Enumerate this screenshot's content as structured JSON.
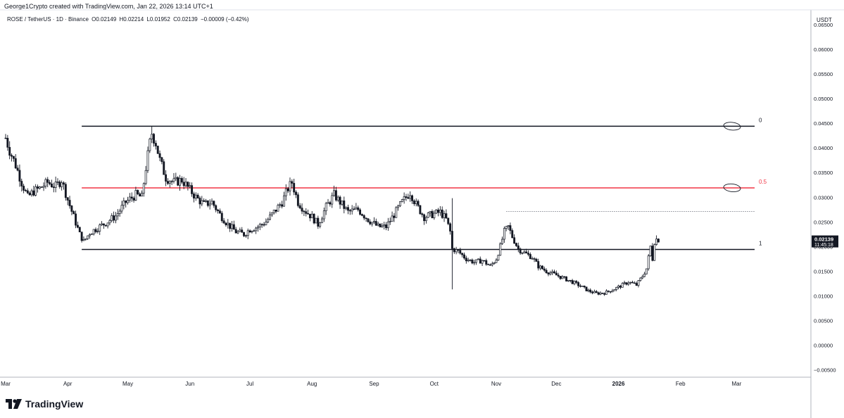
{
  "header": {
    "attribution": "George1Crypto created with TradingView.com, Jan 22, 2026 13:14 UTC+1"
  },
  "symbol": {
    "name": "ROSE / TetherUS · 1D · Binance",
    "open": "O0.02149",
    "high": "H0.02214",
    "low": "L0.01952",
    "close": "C0.02139",
    "change": "−0.00009 (−0.42%)"
  },
  "price_axis": {
    "currency": "USDT",
    "last_price": "0.02139",
    "countdown": "11:45:18"
  },
  "footer": {
    "brand": "TradingView",
    "logo_icon": "tradingview-logo-icon"
  },
  "colors": {
    "candle": "#131722",
    "fib_mid": "#f23645",
    "axis": "#131722"
  },
  "chart_data": {
    "type": "candlestick",
    "x_tick_labels": [
      "Mar",
      "Apr",
      "May",
      "Jun",
      "Jul",
      "Aug",
      "Sep",
      "Oct",
      "Nov",
      "Dec",
      "2026",
      "Feb",
      "Mar"
    ],
    "y_tick_labels": [
      "0.06500",
      "0.06000",
      "0.05500",
      "0.05000",
      "0.04500",
      "0.04000",
      "0.03500",
      "0.03000",
      "0.02500",
      "0.02000",
      "0.01500",
      "0.01000",
      "0.00500",
      "0.00000",
      "−0.00500"
    ],
    "y_ticks": [
      0.065,
      0.06,
      0.055,
      0.05,
      0.045,
      0.04,
      0.035,
      0.03,
      0.025,
      0.02,
      0.015,
      0.01,
      0.005,
      0.0,
      -0.005
    ],
    "ylim": [
      -0.0065,
      0.068
    ],
    "fib_levels": [
      {
        "label": "0",
        "value": 0.0444
      },
      {
        "label": "0.5",
        "value": 0.0319
      },
      {
        "label": "1",
        "value": 0.0194
      }
    ],
    "dotted_level": 0.0271,
    "close_path": [
      [
        "2025-03-01",
        0.042
      ],
      [
        "2025-03-03",
        0.0395
      ],
      [
        "2025-03-06",
        0.0365
      ],
      [
        "2025-03-09",
        0.033
      ],
      [
        "2025-03-12",
        0.03
      ],
      [
        "2025-03-15",
        0.0312
      ],
      [
        "2025-03-18",
        0.0318
      ],
      [
        "2025-03-22",
        0.033
      ],
      [
        "2025-03-26",
        0.0322
      ],
      [
        "2025-03-29",
        0.0335
      ],
      [
        "2025-04-01",
        0.0295
      ],
      [
        "2025-04-04",
        0.026
      ],
      [
        "2025-04-07",
        0.0225
      ],
      [
        "2025-04-09",
        0.021
      ],
      [
        "2025-04-12",
        0.0228
      ],
      [
        "2025-04-16",
        0.0238
      ],
      [
        "2025-04-20",
        0.0248
      ],
      [
        "2025-04-25",
        0.0262
      ],
      [
        "2025-04-30",
        0.029
      ],
      [
        "2025-05-05",
        0.0305
      ],
      [
        "2025-05-08",
        0.03
      ],
      [
        "2025-05-10",
        0.036
      ],
      [
        "2025-05-12",
        0.041
      ],
      [
        "2025-05-13",
        0.043
      ],
      [
        "2025-05-15",
        0.041
      ],
      [
        "2025-05-17",
        0.0375
      ],
      [
        "2025-05-20",
        0.034
      ],
      [
        "2025-05-24",
        0.033
      ],
      [
        "2025-05-28",
        0.0335
      ],
      [
        "2025-06-01",
        0.0315
      ],
      [
        "2025-06-04",
        0.03
      ],
      [
        "2025-06-08",
        0.0285
      ],
      [
        "2025-06-12",
        0.029
      ],
      [
        "2025-06-16",
        0.0265
      ],
      [
        "2025-06-20",
        0.0245
      ],
      [
        "2025-06-24",
        0.023
      ],
      [
        "2025-06-28",
        0.0225
      ],
      [
        "2025-07-01",
        0.0235
      ],
      [
        "2025-07-05",
        0.024
      ],
      [
        "2025-07-09",
        0.025
      ],
      [
        "2025-07-13",
        0.027
      ],
      [
        "2025-07-17",
        0.029
      ],
      [
        "2025-07-20",
        0.0318
      ],
      [
        "2025-07-22",
        0.033
      ],
      [
        "2025-07-25",
        0.029
      ],
      [
        "2025-07-28",
        0.0275
      ],
      [
        "2025-08-01",
        0.026
      ],
      [
        "2025-08-04",
        0.0245
      ],
      [
        "2025-08-08",
        0.028
      ],
      [
        "2025-08-12",
        0.0305
      ],
      [
        "2025-08-15",
        0.029
      ],
      [
        "2025-08-19",
        0.027
      ],
      [
        "2025-08-24",
        0.0275
      ],
      [
        "2025-08-29",
        0.0255
      ],
      [
        "2025-09-03",
        0.024
      ],
      [
        "2025-09-07",
        0.024
      ],
      [
        "2025-09-11",
        0.0265
      ],
      [
        "2025-09-15",
        0.029
      ],
      [
        "2025-09-19",
        0.031
      ],
      [
        "2025-09-22",
        0.0285
      ],
      [
        "2025-09-26",
        0.026
      ],
      [
        "2025-09-30",
        0.0265
      ],
      [
        "2025-10-04",
        0.027
      ],
      [
        "2025-10-07",
        0.0255
      ],
      [
        "2025-10-09",
        0.023
      ],
      [
        "2025-10-10",
        0.0195
      ],
      [
        "2025-10-13",
        0.019
      ],
      [
        "2025-10-17",
        0.0175
      ],
      [
        "2025-10-21",
        0.0168
      ],
      [
        "2025-10-25",
        0.0172
      ],
      [
        "2025-10-29",
        0.016
      ],
      [
        "2025-11-01",
        0.0175
      ],
      [
        "2025-11-03",
        0.02
      ],
      [
        "2025-11-05",
        0.023
      ],
      [
        "2025-11-07",
        0.024
      ],
      [
        "2025-11-09",
        0.022
      ],
      [
        "2025-11-12",
        0.0195
      ],
      [
        "2025-11-16",
        0.0185
      ],
      [
        "2025-11-19",
        0.0178
      ],
      [
        "2025-11-22",
        0.016
      ],
      [
        "2025-11-26",
        0.015
      ],
      [
        "2025-12-01",
        0.0142
      ],
      [
        "2025-12-05",
        0.0135
      ],
      [
        "2025-12-09",
        0.0128
      ],
      [
        "2025-12-13",
        0.012
      ],
      [
        "2025-12-17",
        0.011
      ],
      [
        "2025-12-21",
        0.0105
      ],
      [
        "2025-12-25",
        0.0106
      ],
      [
        "2025-12-29",
        0.0112
      ],
      [
        "2026-01-02",
        0.012
      ],
      [
        "2026-01-06",
        0.0128
      ],
      [
        "2026-01-10",
        0.0122
      ],
      [
        "2026-01-13",
        0.014
      ],
      [
        "2026-01-15",
        0.0155
      ],
      [
        "2026-01-17",
        0.02
      ],
      [
        "2026-01-18",
        0.0175
      ],
      [
        "2026-01-19",
        0.021
      ],
      [
        "2026-01-20",
        0.0215
      ],
      [
        "2026-01-21",
        0.0214
      ]
    ]
  }
}
